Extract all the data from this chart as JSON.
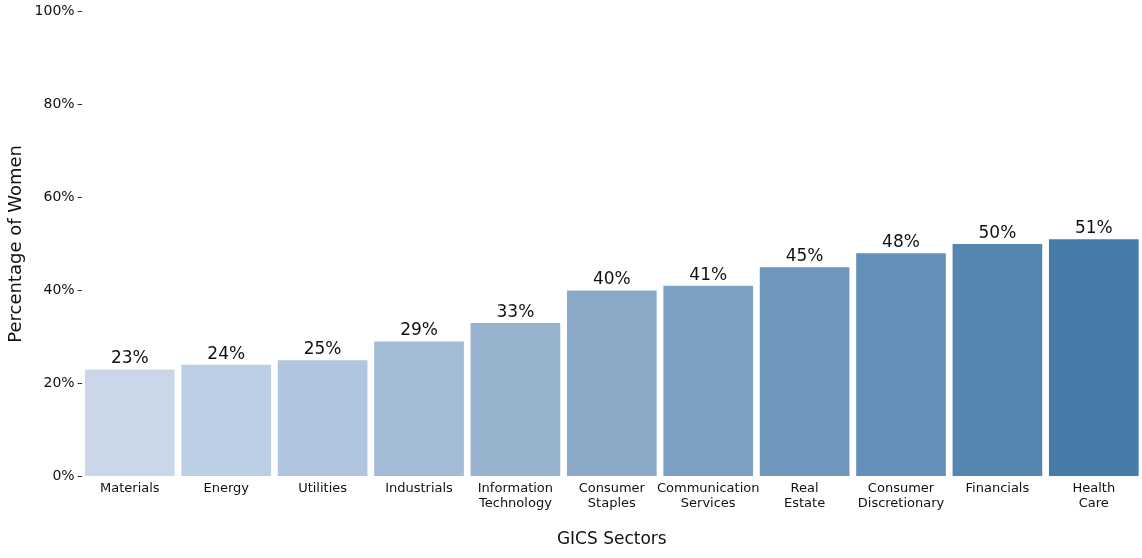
{
  "chart_data": {
    "type": "bar",
    "xlabel": "GICS Sectors",
    "ylabel": "Percentage of Women",
    "categories": [
      "Materials",
      "Energy",
      "Utilities",
      "Industrials",
      "Information Technology",
      "Consumer Staples",
      "Communication Services",
      "Real Estate",
      "Consumer Discretionary",
      "Financials",
      "Health Care"
    ],
    "values": [
      23,
      24,
      25,
      29,
      33,
      40,
      41,
      45,
      48,
      50,
      51
    ],
    "colors": [
      "#c9d7e9",
      "#bccfe4",
      "#b0c5dd",
      "#a3bbd6",
      "#97b3ce",
      "#8aa9c7",
      "#7ca0c1",
      "#6e97bb",
      "#6290b6",
      "#5486b0",
      "#477ca8"
    ],
    "value_labels": [
      "23%",
      "24%",
      "25%",
      "29%",
      "33%",
      "40%",
      "41%",
      "45%",
      "48%",
      "50%",
      "51%"
    ],
    "ylim": [
      0,
      100
    ],
    "yticks": [
      {
        "value": 0,
        "label": "0%"
      },
      {
        "value": 20,
        "label": "20%"
      },
      {
        "value": 40,
        "label": "40%"
      },
      {
        "value": 60,
        "label": "60%"
      },
      {
        "value": 80,
        "label": "80%"
      },
      {
        "value": 100,
        "label": "100%"
      }
    ],
    "grid": false,
    "legend": false
  }
}
